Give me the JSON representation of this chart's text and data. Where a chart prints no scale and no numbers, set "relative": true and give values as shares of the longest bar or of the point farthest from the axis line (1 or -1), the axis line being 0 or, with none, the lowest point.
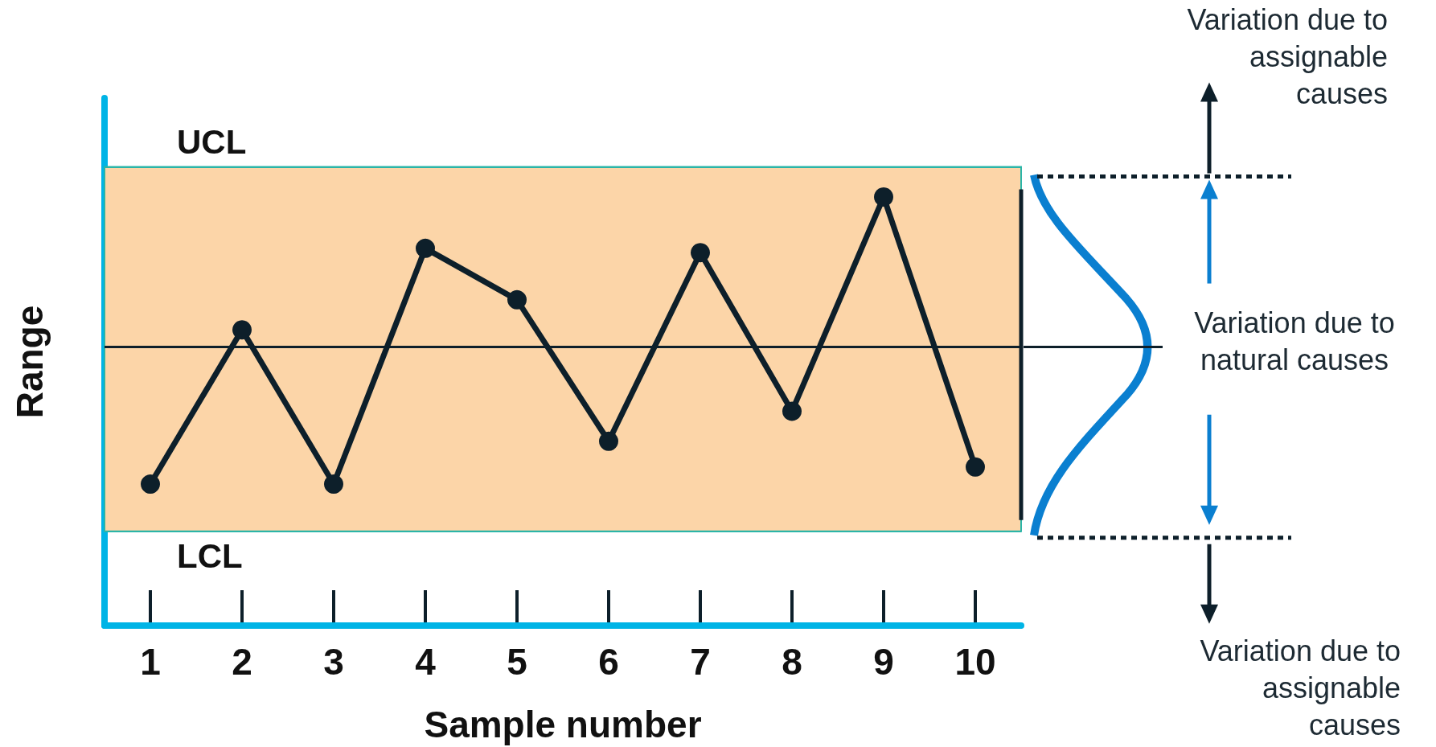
{
  "chart_data": {
    "type": "line",
    "relative": true,
    "xlabel": "Sample number",
    "ylabel": "Range",
    "categories": [
      "1",
      "2",
      "3",
      "4",
      "5",
      "6",
      "7",
      "8",
      "9",
      "10"
    ],
    "series": [
      {
        "color": "#0d1f2a",
        "values": [
          0.33,
          0.69,
          0.33,
          0.88,
          0.76,
          0.43,
          0.87,
          0.5,
          1,
          0.37
        ]
      }
    ],
    "marker": "circle",
    "line_style": "solid",
    "ref_lines": [
      {
        "axis": "y",
        "value": 1.07,
        "label": "UCL",
        "color": "#2bb5a8"
      },
      {
        "axis": "y",
        "value": 0.65,
        "label": null,
        "color": "#0d1f2a"
      },
      {
        "axis": "y",
        "value": 0.22,
        "label": "LCL",
        "color": "#2bb5a8"
      }
    ],
    "bands": [
      {
        "axis": "y",
        "from": 0.22,
        "to": 1.07,
        "label": null,
        "color": "#fcd5a8"
      }
    ],
    "annotations": [
      "Variation due to assignable causes",
      "Variation due to natural causes",
      "Variation due to assignable causes"
    ]
  }
}
